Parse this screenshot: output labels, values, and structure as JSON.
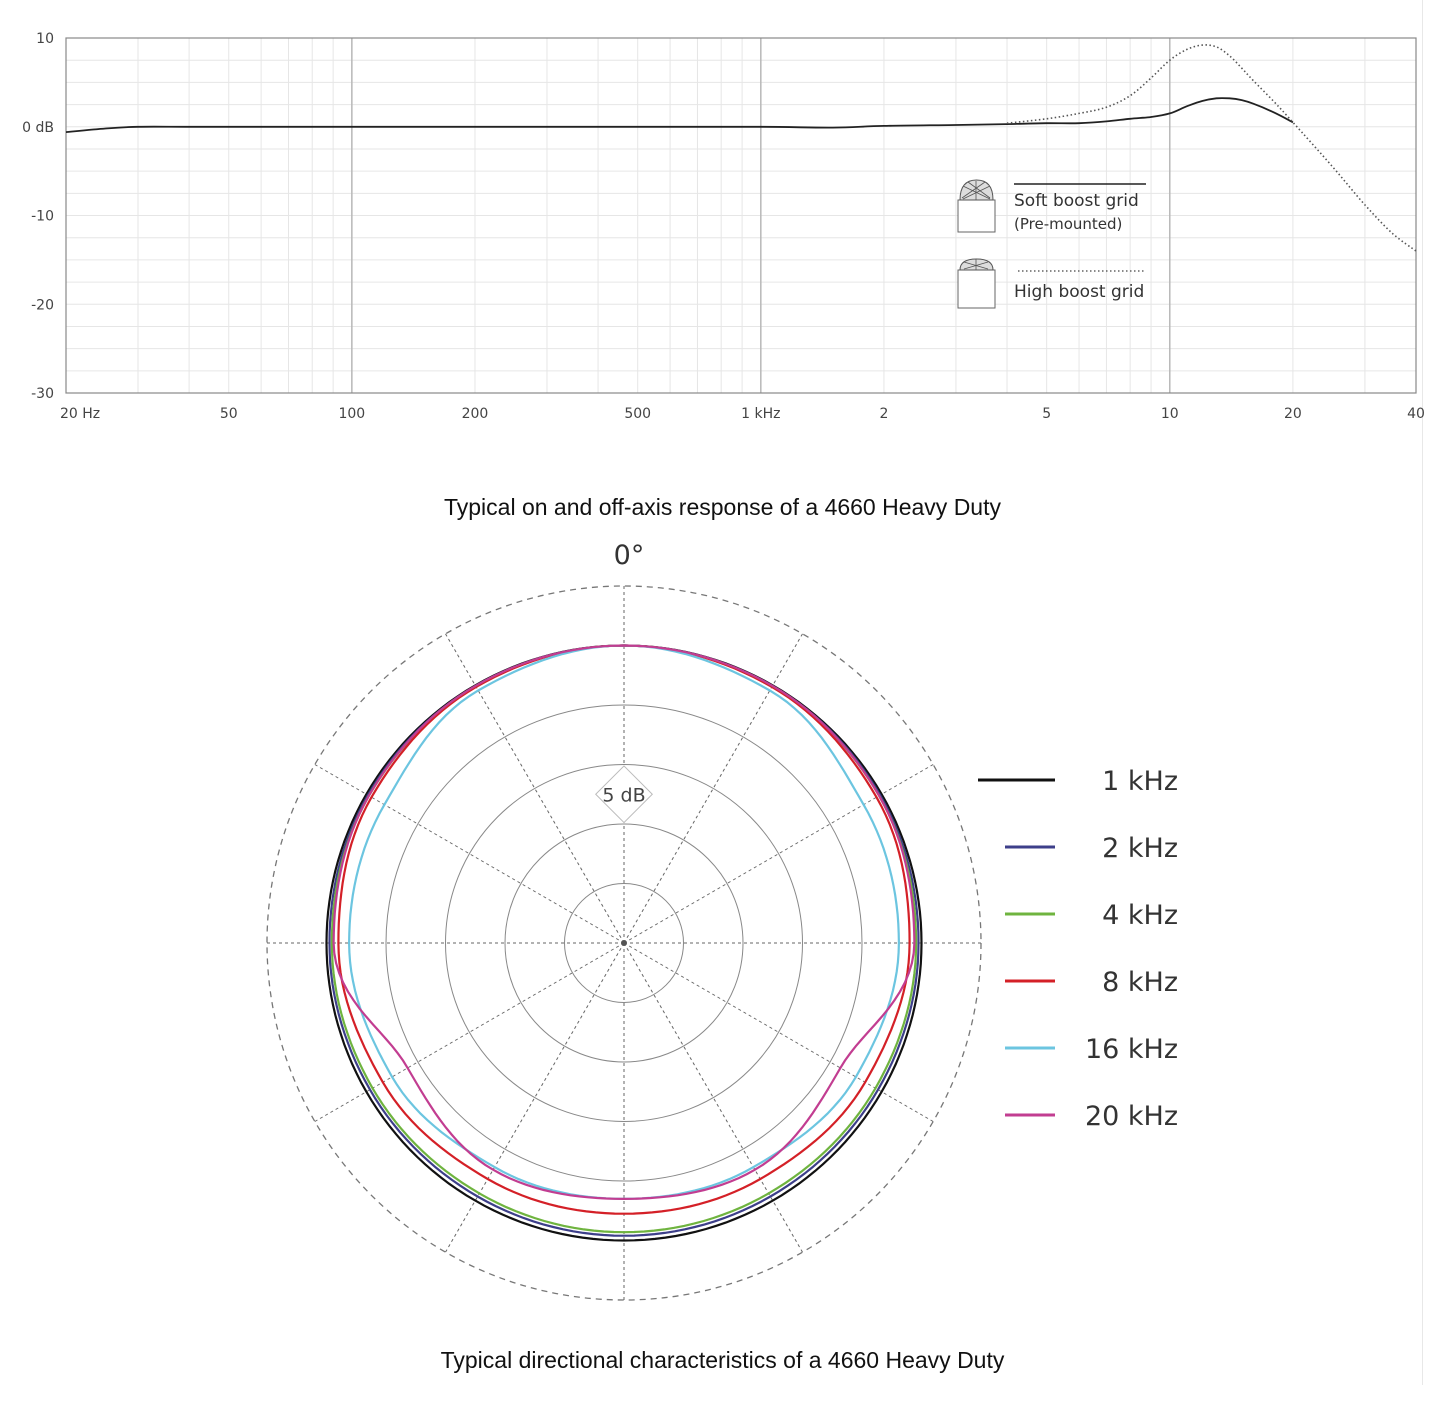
{
  "chart_data": [
    {
      "type": "line",
      "title": "",
      "caption": "Typical on and off-axis response of a 4660 Heavy Duty",
      "x_scale": "log",
      "xlim": [
        20,
        40000
      ],
      "ylim": [
        -30,
        10
      ],
      "x_tick_values": [
        20,
        50,
        100,
        200,
        500,
        1000,
        2000,
        5000,
        10000,
        20000,
        40000
      ],
      "x_tick_labels": [
        "20 Hz",
        "50",
        "100",
        "200",
        "500",
        "1 kHz",
        "2",
        "5",
        "10",
        "20",
        "40"
      ],
      "y_tick_values": [
        10,
        0,
        -10,
        -20,
        -30
      ],
      "y_tick_labels": [
        "10",
        "0 dB",
        "-10",
        "-20",
        "-30"
      ],
      "grid": true,
      "legend_position": "center-right",
      "series": [
        {
          "name": "Soft boost grid",
          "sublabel": "(Pre-mounted)",
          "style": "solid",
          "color": "#222222",
          "x": [
            20,
            25,
            30,
            40,
            60,
            100,
            200,
            500,
            1000,
            1500,
            2000,
            3000,
            4000,
            5000,
            6000,
            7000,
            8000,
            9000,
            10000,
            11000,
            12000,
            13000,
            14000,
            15000,
            16000,
            18000,
            20000
          ],
          "y": [
            -0.6,
            -0.2,
            0,
            0,
            0,
            0,
            0,
            0,
            0,
            -0.1,
            0.1,
            0.2,
            0.3,
            0.4,
            0.4,
            0.6,
            0.9,
            1.1,
            1.5,
            2.3,
            2.9,
            3.2,
            3.2,
            3.0,
            2.6,
            1.6,
            0.5
          ]
        },
        {
          "name": "High boost grid",
          "style": "dotted",
          "color": "#555555",
          "x": [
            4000,
            5000,
            6000,
            7000,
            8000,
            9000,
            10000,
            11000,
            12000,
            13000,
            14000,
            15000,
            16000,
            18000,
            20000,
            25000,
            30000,
            35000,
            40000
          ],
          "y": [
            0.4,
            0.9,
            1.5,
            2.2,
            3.5,
            5.5,
            7.5,
            8.7,
            9.2,
            9.0,
            8.0,
            6.6,
            5.2,
            2.8,
            0.5,
            -4.5,
            -8.8,
            -12.0,
            -14.0
          ]
        }
      ]
    },
    {
      "type": "polar",
      "title": "",
      "caption": "Typical directional characteristics of a 4660 Heavy Duty",
      "angle_label": "0°",
      "radial_step_label": "5 dB",
      "radial_rings": 6,
      "angle_step_deg": 30,
      "grid": true,
      "legend_position": "right",
      "theta_deg": [
        0,
        30,
        60,
        90,
        120,
        150,
        180
      ],
      "series": [
        {
          "name": "1 kHz",
          "color": "#111111",
          "r": [
            5.0,
            5.0,
            5.0,
            5.0,
            5.0,
            5.0,
            5.0
          ]
        },
        {
          "name": "2 kHz",
          "color": "#3d3f8a",
          "r": [
            5.0,
            4.99,
            4.97,
            4.95,
            4.93,
            4.92,
            4.92
          ]
        },
        {
          "name": "4 kHz",
          "color": "#6fb43f",
          "r": [
            5.0,
            4.98,
            4.95,
            4.91,
            4.88,
            4.86,
            4.86
          ]
        },
        {
          "name": "8 kHz",
          "color": "#d42027",
          "r": [
            5.0,
            4.97,
            4.9,
            4.8,
            4.68,
            4.58,
            4.55
          ]
        },
        {
          "name": "16 kHz",
          "color": "#6cc5e0",
          "r": [
            5.0,
            4.9,
            4.65,
            4.62,
            4.5,
            4.35,
            4.3
          ]
        },
        {
          "name": "20 kHz",
          "color": "#c23d91",
          "r": [
            5.0,
            4.99,
            4.95,
            4.88,
            4.2,
            4.4,
            4.3
          ]
        }
      ]
    }
  ]
}
